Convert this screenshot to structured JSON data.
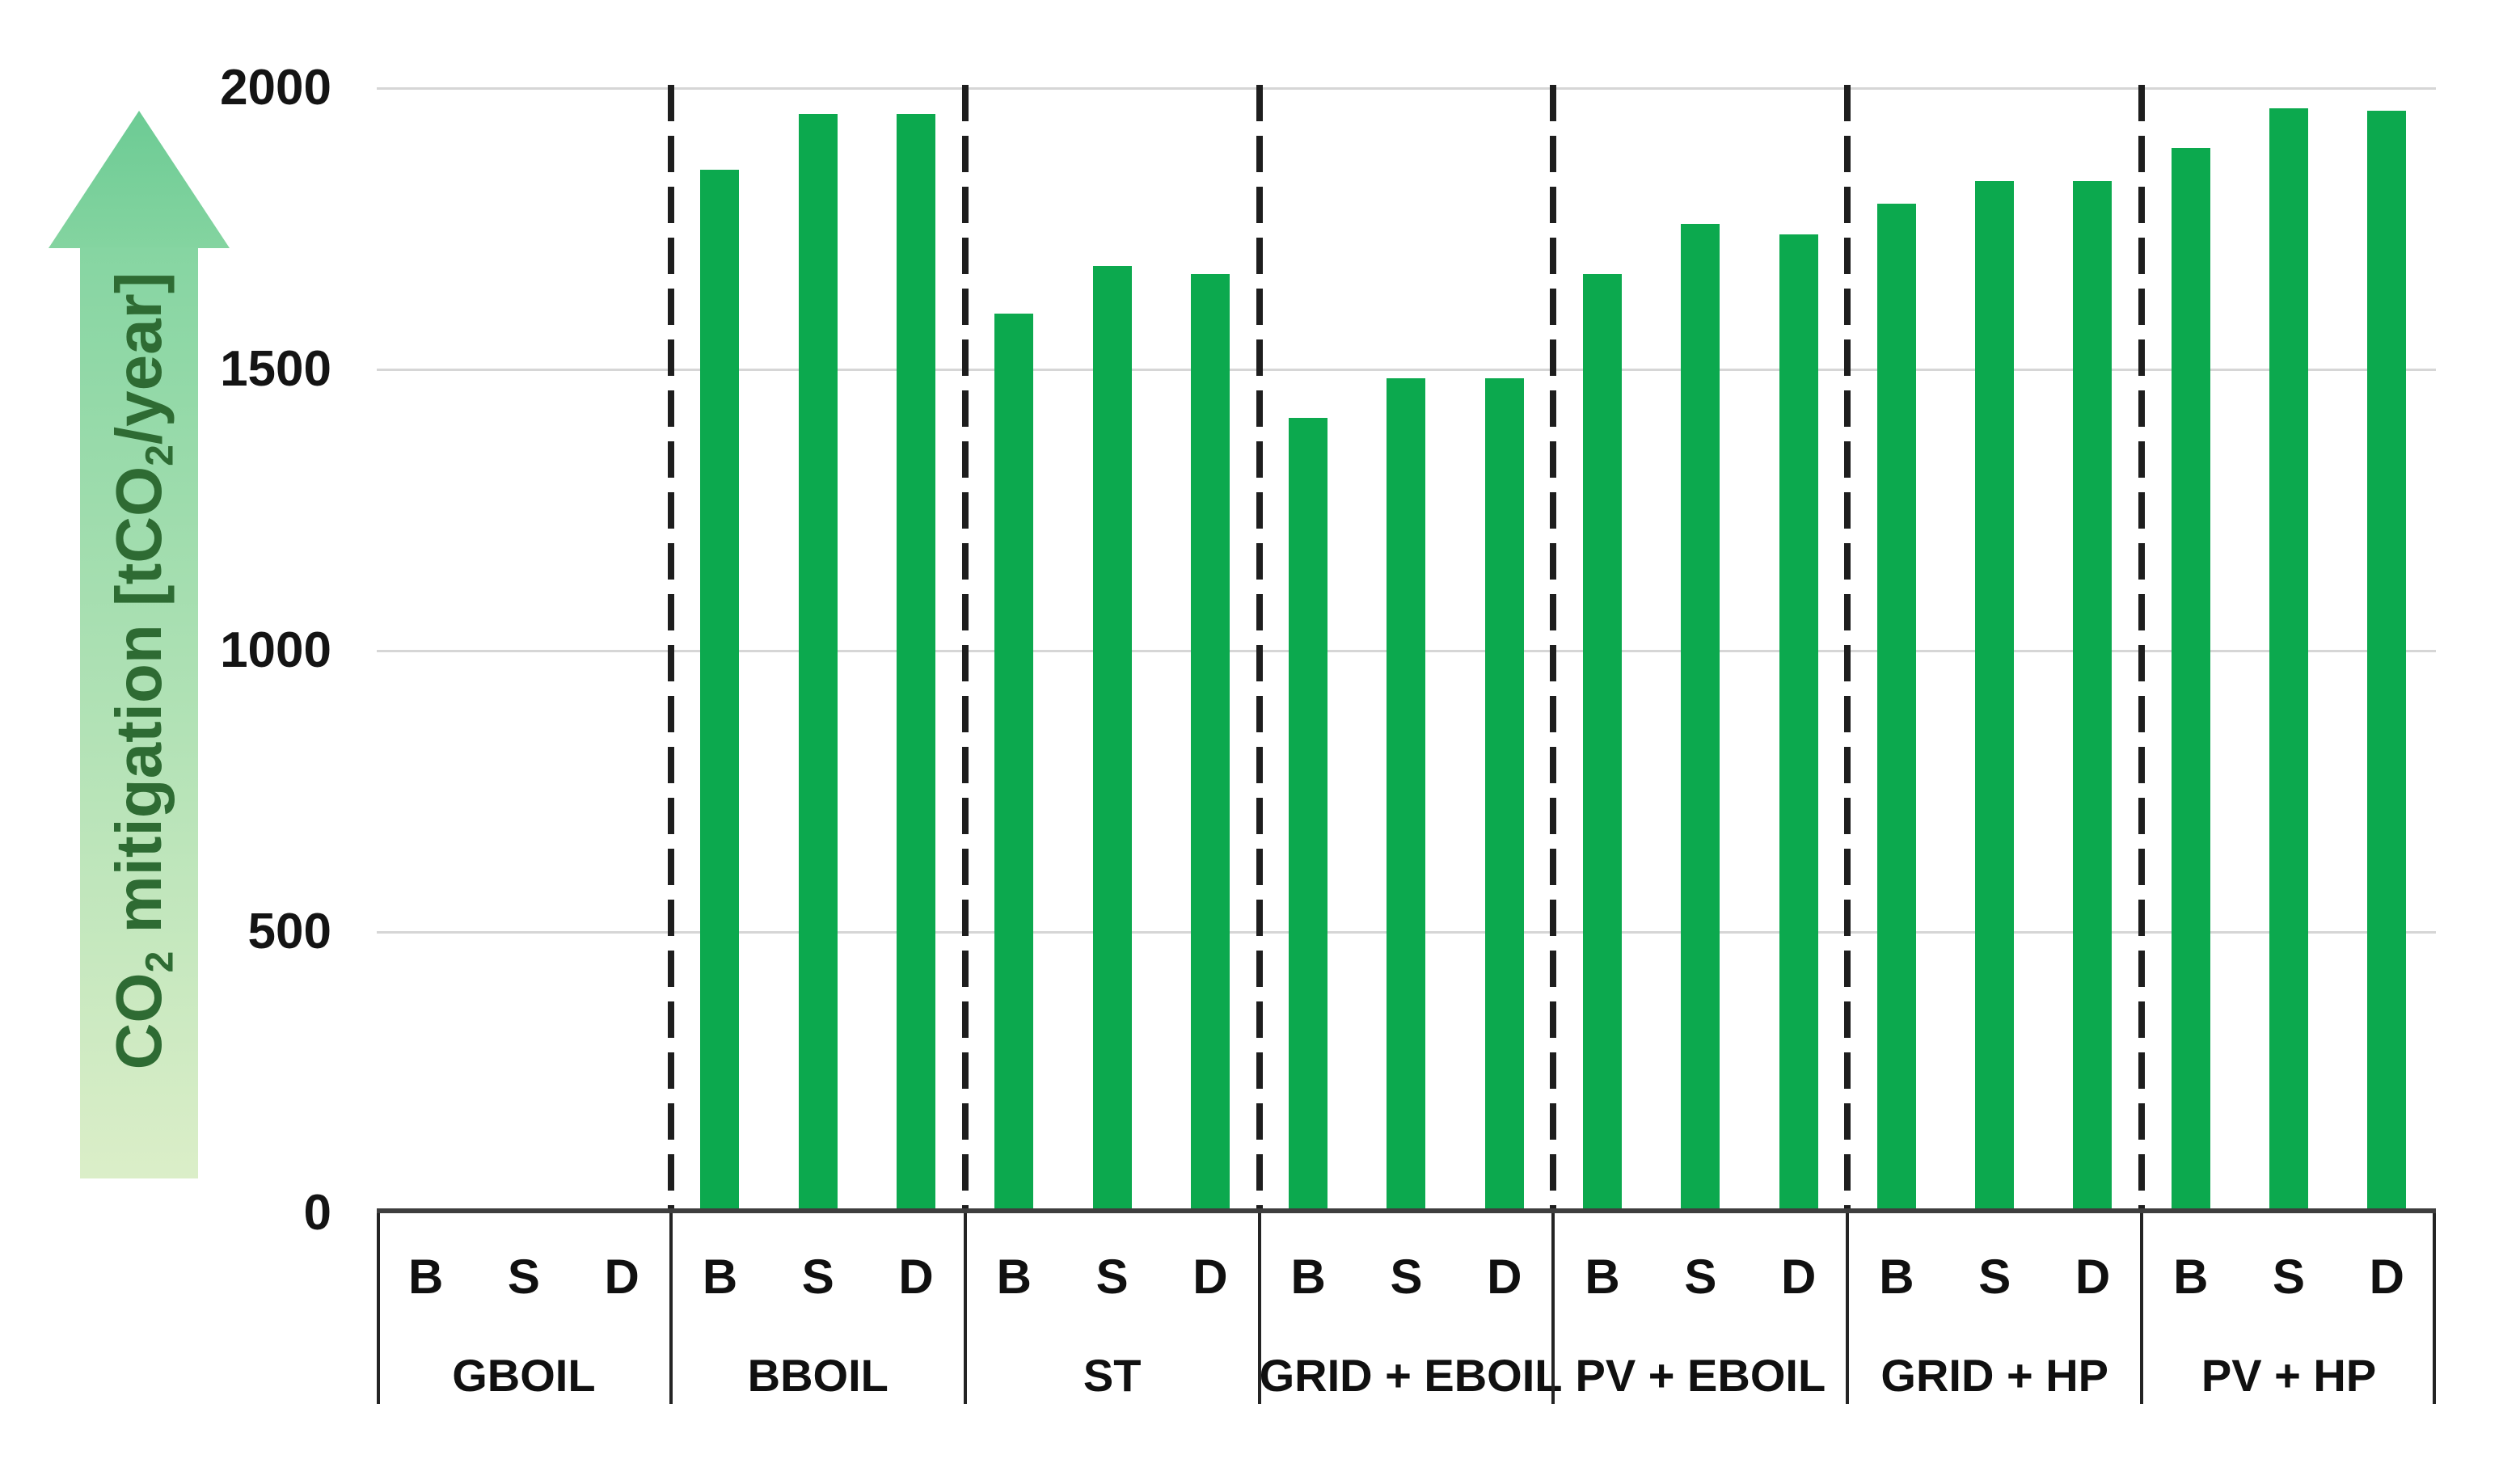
{
  "y_axis": {
    "title_parts": {
      "p1": "CO",
      "p2": "2",
      "p3": " mitigation [tCO",
      "p4": "2",
      "p5": "/year]"
    },
    "ticks": [
      0,
      500,
      1000,
      1500,
      2000
    ]
  },
  "chart_data": {
    "type": "bar",
    "title": "",
    "ylabel": "CO2 mitigation [tCO2/year]",
    "ylim": [
      0,
      2000
    ],
    "grid": true,
    "legend_position": "none",
    "series_labels": [
      "B",
      "S",
      "D"
    ],
    "groups": [
      {
        "name": "GBOIL",
        "values": [
          0,
          0,
          0
        ]
      },
      {
        "name": "BBOIL",
        "values": [
          1850,
          1950,
          1950
        ]
      },
      {
        "name": "ST",
        "values": [
          1595,
          1680,
          1665
        ]
      },
      {
        "name": "GRID + EBOIL",
        "values": [
          1410,
          1480,
          1480
        ]
      },
      {
        "name": "PV + EBOIL",
        "values": [
          1665,
          1755,
          1735
        ]
      },
      {
        "name": "GRID + HP",
        "values": [
          1790,
          1830,
          1830
        ]
      },
      {
        "name": "PV + HP",
        "values": [
          1890,
          1960,
          1955
        ]
      }
    ]
  },
  "theme": {
    "bar_color": "#0CA94E",
    "grid_color": "#d6d6d6",
    "axis_line_color": "#3E3E3E",
    "box_line_color": "#242424",
    "dash_color": "#1e1e1e",
    "arrow_head_top": "#6CCB94",
    "arrow_head_bottom": "#84D4A0",
    "arrow_body_top": "#86D5A2",
    "arrow_body_bottom": "#DBEEC8",
    "arrow_text_color": "#2E6B33"
  }
}
